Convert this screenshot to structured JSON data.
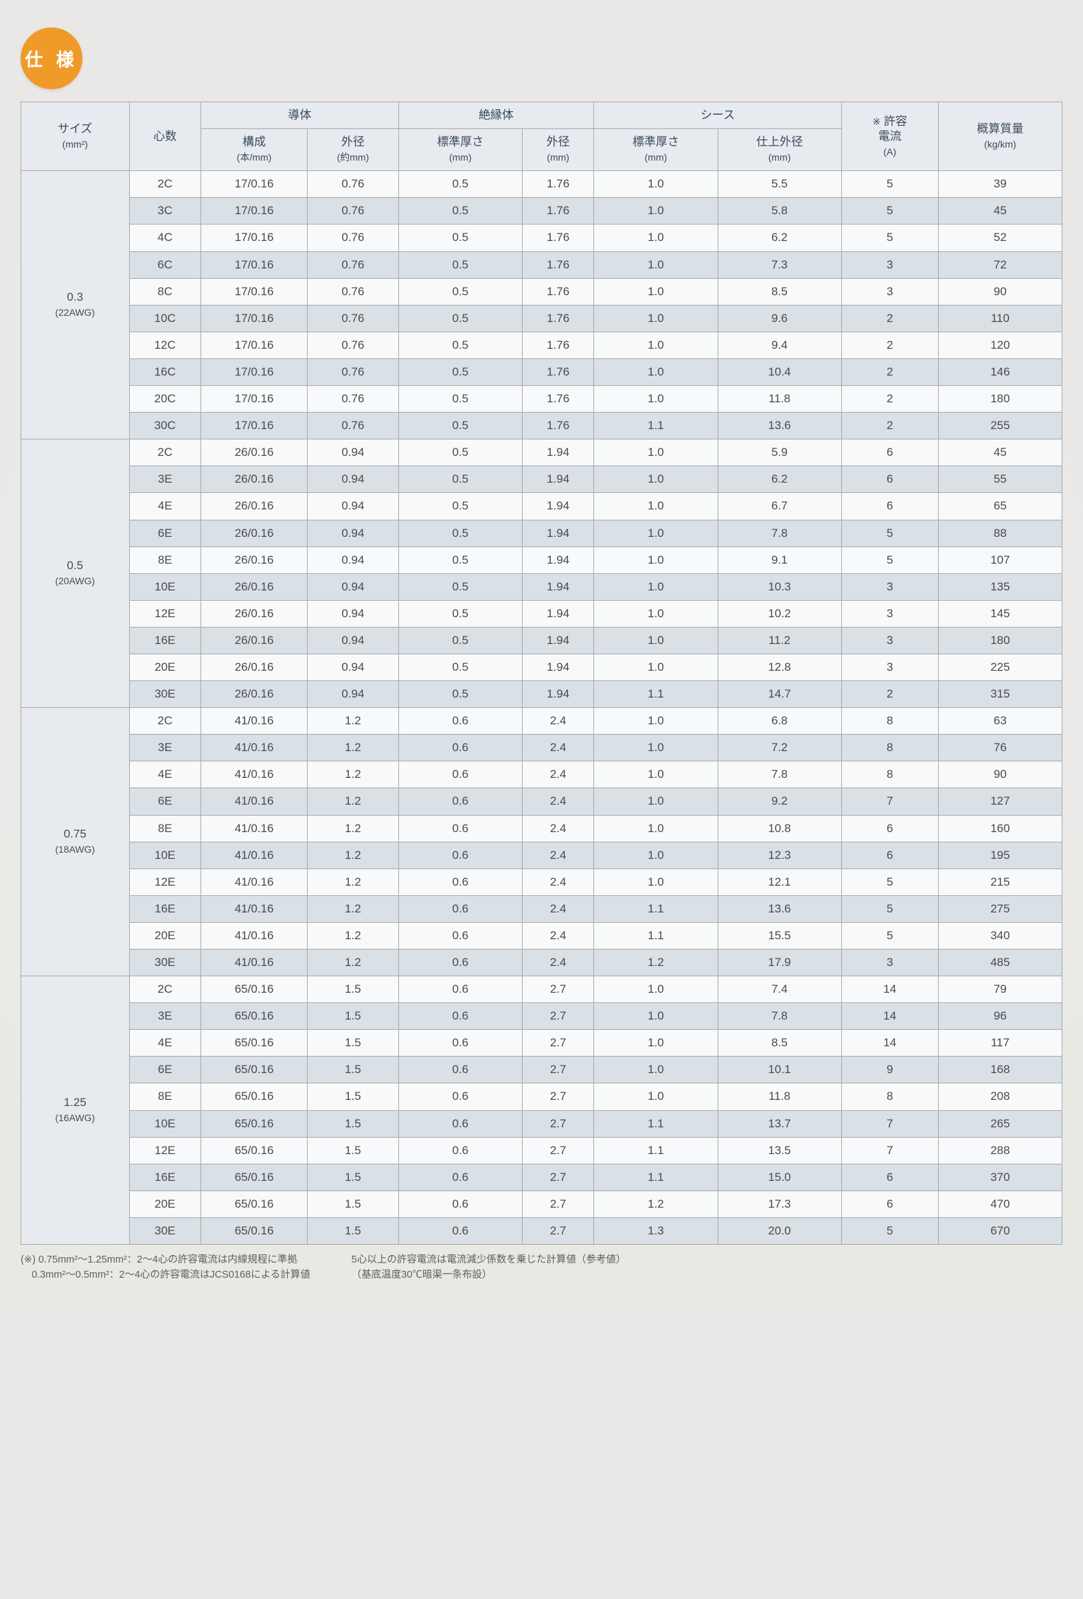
{
  "badge_label": "仕 様",
  "table": {
    "background_color": "#ffffff",
    "header_bg": "#e7ebef",
    "row_alt_bg": "#d9e0e6",
    "row_bg": "#f7f9fa",
    "border_color": "#a8a8a8",
    "text_color": "#4a4a4a",
    "font_size_pt": 13,
    "headers": {
      "size": {
        "line1": "サイズ",
        "line2": "(mm²)"
      },
      "cores": {
        "line1": "心数"
      },
      "conductor": {
        "group": "導体",
        "comp": {
          "line1": "構成",
          "line2": "(本/mm)"
        },
        "od": {
          "line1": "外径",
          "line2": "(約mm)"
        }
      },
      "insulation": {
        "group": "絶縁体",
        "thk": {
          "line1": "標準厚さ",
          "line2": "(mm)"
        },
        "od": {
          "line1": "外径",
          "line2": "(mm)"
        }
      },
      "sheath": {
        "group": "シース",
        "thk": {
          "line1": "標準厚さ",
          "line2": "(mm)"
        },
        "od": {
          "line1": "仕上外径",
          "line2": "(mm)"
        }
      },
      "current": {
        "marker": "※",
        "line1": "許容",
        "line2": "電流",
        "line3": "(A)"
      },
      "weight": {
        "line1": "概算質量",
        "line2": "(kg/km)"
      }
    },
    "groups": [
      {
        "size_line1": "0.3",
        "size_line2": "(22AWG)",
        "rows": [
          {
            "cores": "2C",
            "comp": "17/0.16",
            "cod": "0.76",
            "ithk": "0.5",
            "iod": "1.76",
            "sthk": "1.0",
            "sod": "5.5",
            "amp": "5",
            "wt": "39"
          },
          {
            "cores": "3C",
            "comp": "17/0.16",
            "cod": "0.76",
            "ithk": "0.5",
            "iod": "1.76",
            "sthk": "1.0",
            "sod": "5.8",
            "amp": "5",
            "wt": "45"
          },
          {
            "cores": "4C",
            "comp": "17/0.16",
            "cod": "0.76",
            "ithk": "0.5",
            "iod": "1.76",
            "sthk": "1.0",
            "sod": "6.2",
            "amp": "5",
            "wt": "52"
          },
          {
            "cores": "6C",
            "comp": "17/0.16",
            "cod": "0.76",
            "ithk": "0.5",
            "iod": "1.76",
            "sthk": "1.0",
            "sod": "7.3",
            "amp": "3",
            "wt": "72"
          },
          {
            "cores": "8C",
            "comp": "17/0.16",
            "cod": "0.76",
            "ithk": "0.5",
            "iod": "1.76",
            "sthk": "1.0",
            "sod": "8.5",
            "amp": "3",
            "wt": "90"
          },
          {
            "cores": "10C",
            "comp": "17/0.16",
            "cod": "0.76",
            "ithk": "0.5",
            "iod": "1.76",
            "sthk": "1.0",
            "sod": "9.6",
            "amp": "2",
            "wt": "110"
          },
          {
            "cores": "12C",
            "comp": "17/0.16",
            "cod": "0.76",
            "ithk": "0.5",
            "iod": "1.76",
            "sthk": "1.0",
            "sod": "9.4",
            "amp": "2",
            "wt": "120"
          },
          {
            "cores": "16C",
            "comp": "17/0.16",
            "cod": "0.76",
            "ithk": "0.5",
            "iod": "1.76",
            "sthk": "1.0",
            "sod": "10.4",
            "amp": "2",
            "wt": "146"
          },
          {
            "cores": "20C",
            "comp": "17/0.16",
            "cod": "0.76",
            "ithk": "0.5",
            "iod": "1.76",
            "sthk": "1.0",
            "sod": "11.8",
            "amp": "2",
            "wt": "180"
          },
          {
            "cores": "30C",
            "comp": "17/0.16",
            "cod": "0.76",
            "ithk": "0.5",
            "iod": "1.76",
            "sthk": "1.1",
            "sod": "13.6",
            "amp": "2",
            "wt": "255"
          }
        ]
      },
      {
        "size_line1": "0.5",
        "size_line2": "(20AWG)",
        "rows": [
          {
            "cores": "2C",
            "comp": "26/0.16",
            "cod": "0.94",
            "ithk": "0.5",
            "iod": "1.94",
            "sthk": "1.0",
            "sod": "5.9",
            "amp": "6",
            "wt": "45"
          },
          {
            "cores": "3E",
            "comp": "26/0.16",
            "cod": "0.94",
            "ithk": "0.5",
            "iod": "1.94",
            "sthk": "1.0",
            "sod": "6.2",
            "amp": "6",
            "wt": "55"
          },
          {
            "cores": "4E",
            "comp": "26/0.16",
            "cod": "0.94",
            "ithk": "0.5",
            "iod": "1.94",
            "sthk": "1.0",
            "sod": "6.7",
            "amp": "6",
            "wt": "65"
          },
          {
            "cores": "6E",
            "comp": "26/0.16",
            "cod": "0.94",
            "ithk": "0.5",
            "iod": "1.94",
            "sthk": "1.0",
            "sod": "7.8",
            "amp": "5",
            "wt": "88"
          },
          {
            "cores": "8E",
            "comp": "26/0.16",
            "cod": "0.94",
            "ithk": "0.5",
            "iod": "1.94",
            "sthk": "1.0",
            "sod": "9.1",
            "amp": "5",
            "wt": "107"
          },
          {
            "cores": "10E",
            "comp": "26/0.16",
            "cod": "0.94",
            "ithk": "0.5",
            "iod": "1.94",
            "sthk": "1.0",
            "sod": "10.3",
            "amp": "3",
            "wt": "135"
          },
          {
            "cores": "12E",
            "comp": "26/0.16",
            "cod": "0.94",
            "ithk": "0.5",
            "iod": "1.94",
            "sthk": "1.0",
            "sod": "10.2",
            "amp": "3",
            "wt": "145"
          },
          {
            "cores": "16E",
            "comp": "26/0.16",
            "cod": "0.94",
            "ithk": "0.5",
            "iod": "1.94",
            "sthk": "1.0",
            "sod": "11.2",
            "amp": "3",
            "wt": "180"
          },
          {
            "cores": "20E",
            "comp": "26/0.16",
            "cod": "0.94",
            "ithk": "0.5",
            "iod": "1.94",
            "sthk": "1.0",
            "sod": "12.8",
            "amp": "3",
            "wt": "225"
          },
          {
            "cores": "30E",
            "comp": "26/0.16",
            "cod": "0.94",
            "ithk": "0.5",
            "iod": "1.94",
            "sthk": "1.1",
            "sod": "14.7",
            "amp": "2",
            "wt": "315"
          }
        ]
      },
      {
        "size_line1": "0.75",
        "size_line2": "(18AWG)",
        "rows": [
          {
            "cores": "2C",
            "comp": "41/0.16",
            "cod": "1.2",
            "ithk": "0.6",
            "iod": "2.4",
            "sthk": "1.0",
            "sod": "6.8",
            "amp": "8",
            "wt": "63"
          },
          {
            "cores": "3E",
            "comp": "41/0.16",
            "cod": "1.2",
            "ithk": "0.6",
            "iod": "2.4",
            "sthk": "1.0",
            "sod": "7.2",
            "amp": "8",
            "wt": "76"
          },
          {
            "cores": "4E",
            "comp": "41/0.16",
            "cod": "1.2",
            "ithk": "0.6",
            "iod": "2.4",
            "sthk": "1.0",
            "sod": "7.8",
            "amp": "8",
            "wt": "90"
          },
          {
            "cores": "6E",
            "comp": "41/0.16",
            "cod": "1.2",
            "ithk": "0.6",
            "iod": "2.4",
            "sthk": "1.0",
            "sod": "9.2",
            "amp": "7",
            "wt": "127"
          },
          {
            "cores": "8E",
            "comp": "41/0.16",
            "cod": "1.2",
            "ithk": "0.6",
            "iod": "2.4",
            "sthk": "1.0",
            "sod": "10.8",
            "amp": "6",
            "wt": "160"
          },
          {
            "cores": "10E",
            "comp": "41/0.16",
            "cod": "1.2",
            "ithk": "0.6",
            "iod": "2.4",
            "sthk": "1.0",
            "sod": "12.3",
            "amp": "6",
            "wt": "195"
          },
          {
            "cores": "12E",
            "comp": "41/0.16",
            "cod": "1.2",
            "ithk": "0.6",
            "iod": "2.4",
            "sthk": "1.0",
            "sod": "12.1",
            "amp": "5",
            "wt": "215"
          },
          {
            "cores": "16E",
            "comp": "41/0.16",
            "cod": "1.2",
            "ithk": "0.6",
            "iod": "2.4",
            "sthk": "1.1",
            "sod": "13.6",
            "amp": "5",
            "wt": "275"
          },
          {
            "cores": "20E",
            "comp": "41/0.16",
            "cod": "1.2",
            "ithk": "0.6",
            "iod": "2.4",
            "sthk": "1.1",
            "sod": "15.5",
            "amp": "5",
            "wt": "340"
          },
          {
            "cores": "30E",
            "comp": "41/0.16",
            "cod": "1.2",
            "ithk": "0.6",
            "iod": "2.4",
            "sthk": "1.2",
            "sod": "17.9",
            "amp": "3",
            "wt": "485"
          }
        ]
      },
      {
        "size_line1": "1.25",
        "size_line2": "(16AWG)",
        "rows": [
          {
            "cores": "2C",
            "comp": "65/0.16",
            "cod": "1.5",
            "ithk": "0.6",
            "iod": "2.7",
            "sthk": "1.0",
            "sod": "7.4",
            "amp": "14",
            "wt": "79"
          },
          {
            "cores": "3E",
            "comp": "65/0.16",
            "cod": "1.5",
            "ithk": "0.6",
            "iod": "2.7",
            "sthk": "1.0",
            "sod": "7.8",
            "amp": "14",
            "wt": "96"
          },
          {
            "cores": "4E",
            "comp": "65/0.16",
            "cod": "1.5",
            "ithk": "0.6",
            "iod": "2.7",
            "sthk": "1.0",
            "sod": "8.5",
            "amp": "14",
            "wt": "117"
          },
          {
            "cores": "6E",
            "comp": "65/0.16",
            "cod": "1.5",
            "ithk": "0.6",
            "iod": "2.7",
            "sthk": "1.0",
            "sod": "10.1",
            "amp": "9",
            "wt": "168"
          },
          {
            "cores": "8E",
            "comp": "65/0.16",
            "cod": "1.5",
            "ithk": "0.6",
            "iod": "2.7",
            "sthk": "1.0",
            "sod": "11.8",
            "amp": "8",
            "wt": "208"
          },
          {
            "cores": "10E",
            "comp": "65/0.16",
            "cod": "1.5",
            "ithk": "0.6",
            "iod": "2.7",
            "sthk": "1.1",
            "sod": "13.7",
            "amp": "7",
            "wt": "265"
          },
          {
            "cores": "12E",
            "comp": "65/0.16",
            "cod": "1.5",
            "ithk": "0.6",
            "iod": "2.7",
            "sthk": "1.1",
            "sod": "13.5",
            "amp": "7",
            "wt": "288"
          },
          {
            "cores": "16E",
            "comp": "65/0.16",
            "cod": "1.5",
            "ithk": "0.6",
            "iod": "2.7",
            "sthk": "1.1",
            "sod": "15.0",
            "amp": "6",
            "wt": "370"
          },
          {
            "cores": "20E",
            "comp": "65/0.16",
            "cod": "1.5",
            "ithk": "0.6",
            "iod": "2.7",
            "sthk": "1.2",
            "sod": "17.3",
            "amp": "6",
            "wt": "470"
          },
          {
            "cores": "30E",
            "comp": "65/0.16",
            "cod": "1.5",
            "ithk": "0.6",
            "iod": "2.7",
            "sthk": "1.3",
            "sod": "20.0",
            "amp": "5",
            "wt": "670"
          }
        ]
      }
    ]
  },
  "footnotes": {
    "left_prefix": "(※)",
    "left_line1": "0.75mm²〜1.25mm²：2〜4心の許容電流は内線規程に準拠",
    "left_line2": "0.3mm²〜0.5mm²：2〜4心の許容電流はJCS0168による計算値",
    "right_line1": "5心以上の許容電流は電流減少係数を乗じた計算値（参考値）",
    "right_line2": "（基底温度30℃暗渠一条布設）"
  },
  "colors": {
    "badge_bg": "#f09a2a",
    "badge_text": "#ffffff",
    "page_bg": "#e9e8e6"
  }
}
